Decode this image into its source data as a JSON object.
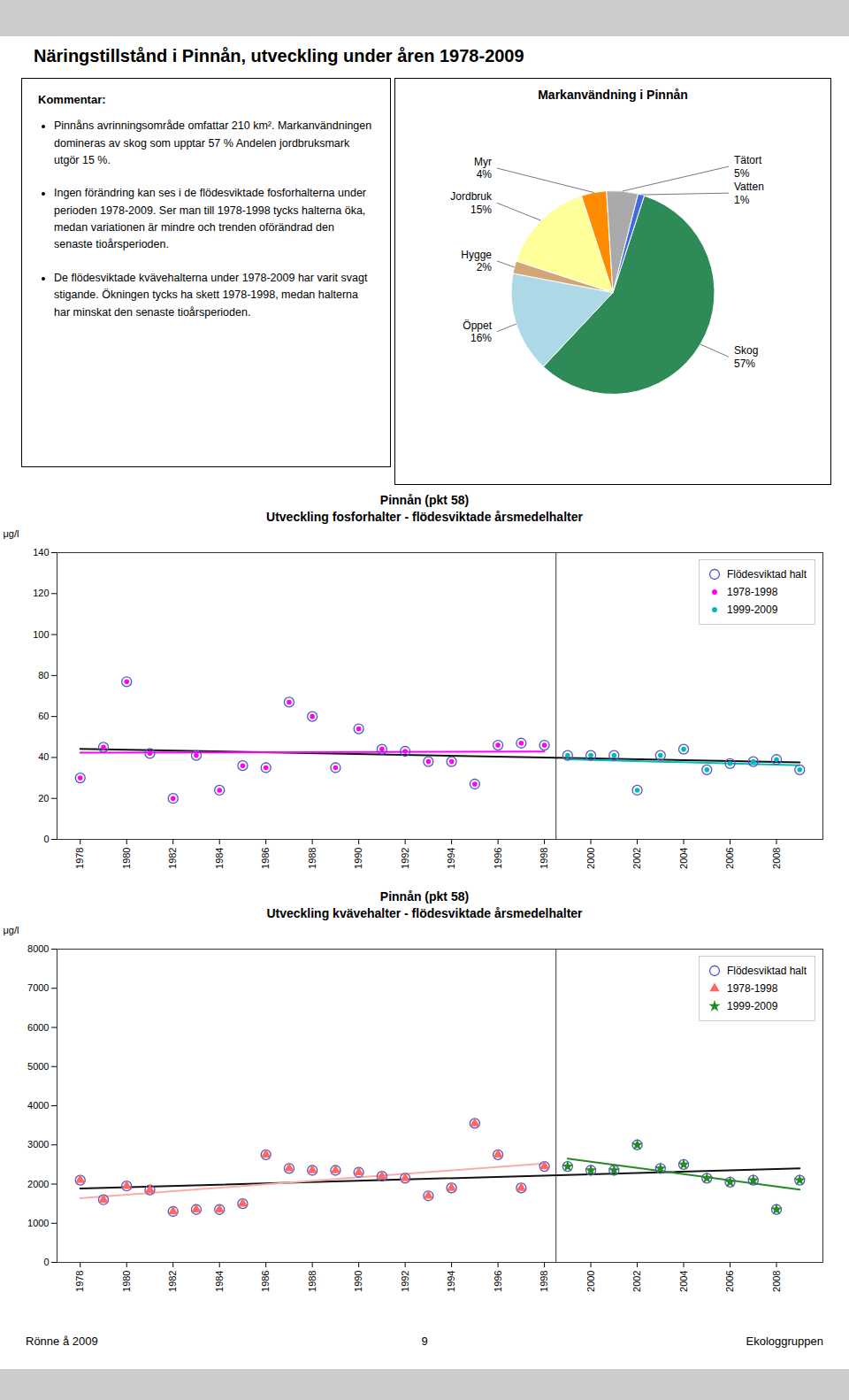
{
  "title": "Näringstillstånd i Pinnån, utveckling under åren 1978-2009",
  "comment_title": "Kommentar:",
  "comments": [
    "Pinnåns avrinningsområde omfattar 210 km². Markanvändningen domineras av skog som upptar 57 % Andelen jordbruksmark utgör 15 %.",
    "Ingen förändring kan ses i de flödesviktade fosforhalterna under perioden 1978-2009. Ser man till 1978-1998 tycks halterna öka, medan variationen är mindre och trenden oförändrad den senaste tioårsperioden.",
    "De flödesviktade kvävehalterna under 1978-2009 har varit svagt stigande. Ökningen tycks ha skett 1978-1998, medan halterna har minskat den senaste tioårsperioden."
  ],
  "footer": [
    "Rönne å 2009",
    "9",
    "Ekologgruppen"
  ],
  "chart_data": [
    {
      "type": "pie",
      "title": "Markanvändning i Pinnån",
      "categories": [
        "Skog",
        "Öppet",
        "Hygge",
        "Jordbruk",
        "Myr",
        "Tätort",
        "Vatten"
      ],
      "values": [
        57,
        16,
        2,
        15,
        4,
        5,
        1
      ],
      "value_labels": [
        "57%",
        "16%",
        "2%",
        "15%",
        "4%",
        "5%",
        "1%"
      ],
      "colors": [
        "#2E8B57",
        "#ADD8E6",
        "#D2A679",
        "#FFFF99",
        "#FF8C00",
        "#AAAAAA",
        "#4169E1"
      ],
      "data_labels": true
    },
    {
      "type": "scatter",
      "title": "Pinnån (pkt 58)",
      "subtitle": "Utveckling fosforhalter - flödesviktade årsmedelhalter",
      "y_label": "μg/l",
      "xlim": [
        1977,
        2010
      ],
      "xticks": [
        1978,
        1980,
        1982,
        1984,
        1986,
        1988,
        1990,
        1992,
        1994,
        1996,
        1998,
        2000,
        2002,
        2004,
        2006,
        2008
      ],
      "ylim": [
        0,
        140
      ],
      "yticks": [
        0,
        20,
        40,
        60,
        80,
        100,
        120,
        140
      ],
      "grid": false,
      "legend": "upper right",
      "series": [
        {
          "name": "Flödesviktad halt",
          "type": "scatter",
          "marker": "circle-open",
          "color": "#5555BB",
          "x": [
            1978,
            1979,
            1980,
            1981,
            1982,
            1983,
            1984,
            1985,
            1986,
            1987,
            1988,
            1989,
            1990,
            1991,
            1992,
            1993,
            1994,
            1995,
            1996,
            1997,
            1998,
            1999,
            2000,
            2001,
            2002,
            2003,
            2004,
            2005,
            2006,
            2007,
            2008,
            2009
          ],
          "values": [
            30,
            45,
            77,
            42,
            20,
            41,
            24,
            36,
            35,
            67,
            60,
            35,
            54,
            44,
            43,
            38,
            38,
            27,
            46,
            47,
            46,
            41,
            41,
            41,
            24,
            41,
            44,
            34,
            37,
            38,
            39,
            34
          ]
        },
        {
          "name": "1978-1998",
          "type": "scatter",
          "marker": "circle",
          "color": "#FF00FF",
          "x": [
            1978,
            1979,
            1980,
            1981,
            1982,
            1983,
            1984,
            1985,
            1986,
            1987,
            1988,
            1989,
            1990,
            1991,
            1992,
            1993,
            1994,
            1995,
            1996,
            1997,
            1998
          ],
          "values": [
            30,
            45,
            77,
            42,
            20,
            41,
            24,
            36,
            35,
            67,
            60,
            35,
            54,
            44,
            43,
            38,
            38,
            27,
            46,
            47,
            46
          ]
        },
        {
          "name": "1999-2009",
          "type": "scatter",
          "marker": "circle",
          "color": "#00BBBB",
          "x": [
            1999,
            2000,
            2001,
            2002,
            2003,
            2004,
            2005,
            2006,
            2007,
            2008,
            2009
          ],
          "values": [
            41,
            41,
            41,
            24,
            41,
            44,
            34,
            37,
            38,
            39,
            34
          ]
        },
        {
          "type": "line",
          "color": "#111111",
          "x": [
            1978,
            2009
          ],
          "values": [
            44.23,
            37.59
          ]
        },
        {
          "type": "line",
          "color": "#FF00FF",
          "x": [
            1978,
            1998
          ],
          "values": [
            42.31,
            42.93
          ]
        },
        {
          "type": "line",
          "color": "#00BBBB",
          "x": [
            1999,
            2009
          ],
          "values": [
            39.14,
            36.14
          ]
        },
        {
          "type": "line",
          "color": "#000000",
          "x": [
            1998.5,
            1998.5
          ],
          "values": [
            0,
            140
          ]
        }
      ]
    },
    {
      "type": "scatter",
      "title": "Pinnån (pkt 58)",
      "subtitle": "Utveckling kvävehalter - flödesviktade årsmedelhalter",
      "y_label": "μg/l",
      "xlim": [
        1977,
        2010
      ],
      "xticks": [
        1978,
        1980,
        1982,
        1984,
        1986,
        1988,
        1990,
        1992,
        1994,
        1996,
        1998,
        2000,
        2002,
        2004,
        2006,
        2008
      ],
      "ylim": [
        0,
        8000
      ],
      "yticks": [
        0,
        1000,
        2000,
        3000,
        4000,
        5000,
        6000,
        7000,
        8000
      ],
      "grid": false,
      "legend": "upper right",
      "series": [
        {
          "name": "Flödesviktad halt",
          "type": "scatter",
          "marker": "circle-open",
          "color": "#5555BB",
          "x": [
            1978,
            1979,
            1980,
            1981,
            1982,
            1983,
            1984,
            1985,
            1986,
            1987,
            1988,
            1989,
            1990,
            1991,
            1992,
            1993,
            1994,
            1995,
            1996,
            1997,
            1998,
            1999,
            2000,
            2001,
            2002,
            2003,
            2004,
            2005,
            2006,
            2007,
            2008,
            2009
          ],
          "values": [
            2100,
            1600,
            1950,
            1850,
            1300,
            1350,
            1350,
            1500,
            2750,
            2400,
            2350,
            2350,
            2300,
            2200,
            2150,
            1700,
            1900,
            3550,
            2750,
            1900,
            2450,
            2450,
            2350,
            2350,
            3000,
            2400,
            2500,
            2150,
            2050,
            2100,
            1350,
            2100
          ]
        },
        {
          "name": "1978-1998",
          "type": "scatter",
          "marker": "triangle",
          "color": "#FF6666",
          "x": [
            1978,
            1979,
            1980,
            1981,
            1982,
            1983,
            1984,
            1985,
            1986,
            1987,
            1988,
            1989,
            1990,
            1991,
            1992,
            1993,
            1994,
            1995,
            1996,
            1997,
            1998
          ],
          "values": [
            2100,
            1600,
            1950,
            1850,
            1300,
            1350,
            1350,
            1500,
            2750,
            2400,
            2350,
            2350,
            2300,
            2200,
            2150,
            1700,
            1900,
            3550,
            2750,
            1900,
            2450
          ]
        },
        {
          "name": "1999-2009",
          "type": "scatter",
          "marker": "star",
          "color": "#228B22",
          "x": [
            1999,
            2000,
            2001,
            2002,
            2003,
            2004,
            2005,
            2006,
            2007,
            2008,
            2009
          ],
          "values": [
            2450,
            2350,
            2350,
            3000,
            2400,
            2500,
            2150,
            2050,
            2100,
            1350,
            2100
          ]
        },
        {
          "type": "line",
          "color": "#111111",
          "x": [
            1978,
            2009
          ],
          "values": [
            1884.66,
            2399.72
          ]
        },
        {
          "type": "line",
          "color": "#FFAAAA",
          "x": [
            1978,
            1998
          ],
          "values": [
            1639.18,
            2527.49
          ]
        },
        {
          "type": "line",
          "color": "#228B22",
          "x": [
            1999,
            2009
          ],
          "values": [
            2647.73,
            1861.36
          ]
        },
        {
          "type": "line",
          "color": "#000000",
          "x": [
            1998.5,
            1998.5
          ],
          "values": [
            0,
            8000
          ]
        }
      ]
    }
  ]
}
